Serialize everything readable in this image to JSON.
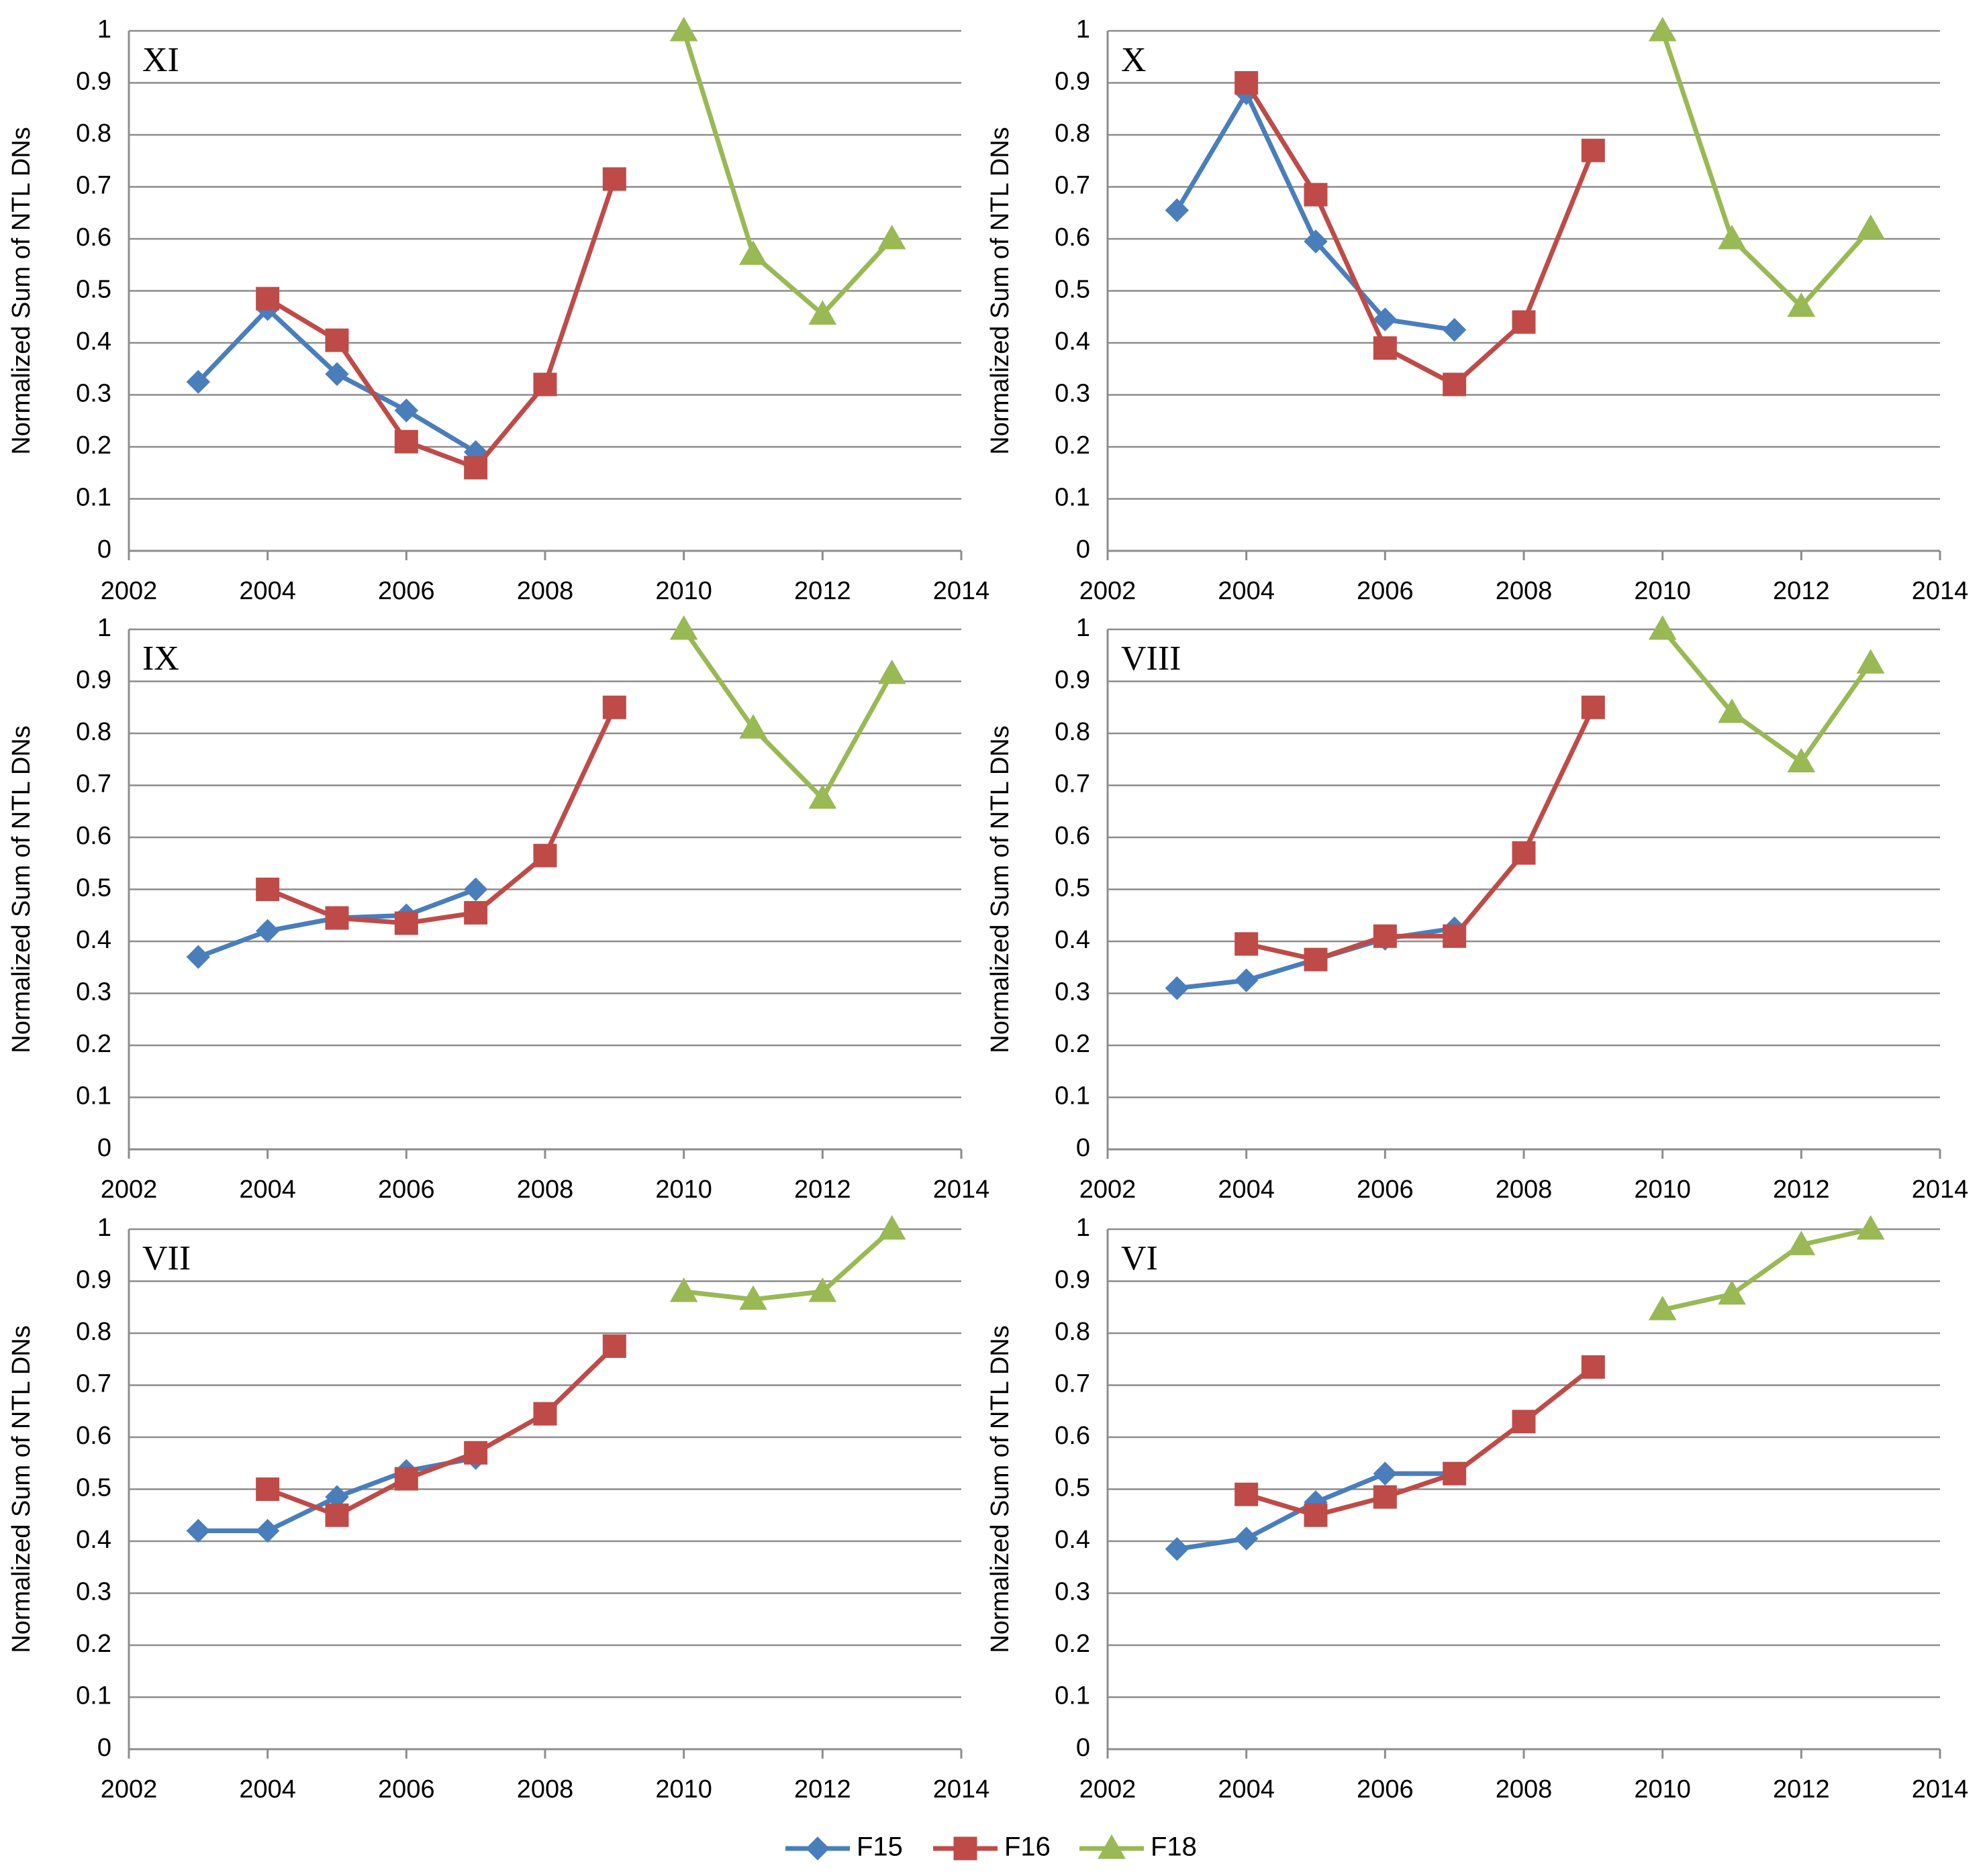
{
  "figure": {
    "colors": {
      "F15": "#4a7ebb",
      "F16": "#be4b48",
      "F18": "#98b954",
      "grid": "#8c8c8c",
      "axis": "#8c8c8c"
    },
    "legend": [
      {
        "name": "F15",
        "marker": "diamond"
      },
      {
        "name": "F16",
        "marker": "square"
      },
      {
        "name": "F18",
        "marker": "triangle"
      }
    ]
  },
  "chart_data": [
    {
      "type": "line",
      "panel": "XI",
      "ylabel": "Normalized Sum of NTL DNs",
      "xlim": [
        2002,
        2014
      ],
      "ylim": [
        0,
        1
      ],
      "xticks": [
        2002,
        2004,
        2006,
        2008,
        2010,
        2012,
        2014
      ],
      "yticks": [
        "0",
        "0.1",
        "0.2",
        "0.3",
        "0.4",
        "0.5",
        "0.6",
        "0.7",
        "0.8",
        "0.9",
        "1"
      ],
      "series": [
        {
          "name": "F15",
          "x": [
            2003,
            2004,
            2005,
            2006,
            2007
          ],
          "values": [
            0.325,
            0.465,
            0.34,
            0.27,
            0.19
          ]
        },
        {
          "name": "F16",
          "x": [
            2004,
            2005,
            2006,
            2007,
            2008,
            2009
          ],
          "values": [
            0.485,
            0.405,
            0.21,
            0.16,
            0.32,
            0.715
          ]
        },
        {
          "name": "F18",
          "x": [
            2010,
            2011,
            2012,
            2013
          ],
          "values": [
            1.0,
            0.57,
            0.455,
            0.6
          ]
        }
      ]
    },
    {
      "type": "line",
      "panel": "X",
      "ylabel": "Normalized Sum of NTL DNs",
      "xlim": [
        2002,
        2014
      ],
      "ylim": [
        0,
        1
      ],
      "xticks": [
        2002,
        2004,
        2006,
        2008,
        2010,
        2012,
        2014
      ],
      "yticks": [
        "0",
        "0.1",
        "0.2",
        "0.3",
        "0.4",
        "0.5",
        "0.6",
        "0.7",
        "0.8",
        "0.9",
        "1"
      ],
      "series": [
        {
          "name": "F15",
          "x": [
            2003,
            2004,
            2005,
            2006,
            2007
          ],
          "values": [
            0.655,
            0.88,
            0.595,
            0.445,
            0.425
          ]
        },
        {
          "name": "F16",
          "x": [
            2004,
            2005,
            2006,
            2007,
            2008,
            2009
          ],
          "values": [
            0.9,
            0.685,
            0.39,
            0.32,
            0.44,
            0.77
          ]
        },
        {
          "name": "F18",
          "x": [
            2010,
            2011,
            2012,
            2013
          ],
          "values": [
            1.0,
            0.6,
            0.47,
            0.62
          ]
        }
      ]
    },
    {
      "type": "line",
      "panel": "IX",
      "ylabel": "Normalized Sum of NTL DNs",
      "xlim": [
        2002,
        2014
      ],
      "ylim": [
        0,
        1
      ],
      "xticks": [
        2002,
        2004,
        2006,
        2008,
        2010,
        2012,
        2014
      ],
      "yticks": [
        "0",
        "0.1",
        "0.2",
        "0.3",
        "0.4",
        "0.5",
        "0.6",
        "0.7",
        "0.8",
        "0.9",
        "1"
      ],
      "series": [
        {
          "name": "F15",
          "x": [
            2003,
            2004,
            2005,
            2006,
            2007
          ],
          "values": [
            0.37,
            0.42,
            0.445,
            0.45,
            0.5
          ]
        },
        {
          "name": "F16",
          "x": [
            2004,
            2005,
            2006,
            2007,
            2008,
            2009
          ],
          "values": [
            0.5,
            0.445,
            0.435,
            0.455,
            0.565,
            0.85
          ]
        },
        {
          "name": "F18",
          "x": [
            2010,
            2011,
            2012,
            2013
          ],
          "values": [
            1.0,
            0.81,
            0.675,
            0.915
          ]
        }
      ]
    },
    {
      "type": "line",
      "panel": "VIII",
      "ylabel": "Normalized Sum of NTL DNs",
      "xlim": [
        2002,
        2014
      ],
      "ylim": [
        0,
        1
      ],
      "xticks": [
        2002,
        2004,
        2006,
        2008,
        2010,
        2012,
        2014
      ],
      "yticks": [
        "0",
        "0.1",
        "0.2",
        "0.3",
        "0.4",
        "0.5",
        "0.6",
        "0.7",
        "0.8",
        "0.9",
        "1"
      ],
      "series": [
        {
          "name": "F15",
          "x": [
            2003,
            2004,
            2005,
            2006,
            2007
          ],
          "values": [
            0.31,
            0.325,
            0.365,
            0.405,
            0.425
          ]
        },
        {
          "name": "F16",
          "x": [
            2004,
            2005,
            2006,
            2007,
            2008,
            2009
          ],
          "values": [
            0.395,
            0.365,
            0.41,
            0.41,
            0.57,
            0.85
          ]
        },
        {
          "name": "F18",
          "x": [
            2010,
            2011,
            2012,
            2013
          ],
          "values": [
            1.0,
            0.84,
            0.745,
            0.935
          ]
        }
      ]
    },
    {
      "type": "line",
      "panel": "VII",
      "ylabel": "Normalized Sum of NTL DNs",
      "xlim": [
        2002,
        2014
      ],
      "ylim": [
        0,
        1
      ],
      "xticks": [
        2002,
        2004,
        2006,
        2008,
        2010,
        2012,
        2014
      ],
      "yticks": [
        "0",
        "0.1",
        "0.2",
        "0.3",
        "0.4",
        "0.5",
        "0.6",
        "0.7",
        "0.8",
        "0.9",
        "1"
      ],
      "series": [
        {
          "name": "F15",
          "x": [
            2003,
            2004,
            2005,
            2006,
            2007
          ],
          "values": [
            0.42,
            0.42,
            0.485,
            0.535,
            0.56
          ]
        },
        {
          "name": "F16",
          "x": [
            2004,
            2005,
            2006,
            2007,
            2008,
            2009
          ],
          "values": [
            0.5,
            0.45,
            0.52,
            0.57,
            0.645,
            0.775
          ]
        },
        {
          "name": "F18",
          "x": [
            2010,
            2011,
            2012,
            2013
          ],
          "values": [
            0.88,
            0.865,
            0.88,
            1.0
          ]
        }
      ]
    },
    {
      "type": "line",
      "panel": "VI",
      "ylabel": "Normalized Sum of NTL DNs",
      "xlim": [
        2002,
        2014
      ],
      "ylim": [
        0,
        1
      ],
      "xticks": [
        2002,
        2004,
        2006,
        2008,
        2010,
        2012,
        2014
      ],
      "yticks": [
        "0",
        "0.1",
        "0.2",
        "0.3",
        "0.4",
        "0.5",
        "0.6",
        "0.7",
        "0.8",
        "0.9",
        "1"
      ],
      "series": [
        {
          "name": "F15",
          "x": [
            2003,
            2004,
            2005,
            2006,
            2007
          ],
          "values": [
            0.385,
            0.405,
            0.475,
            0.53,
            0.53
          ]
        },
        {
          "name": "F16",
          "x": [
            2004,
            2005,
            2006,
            2007,
            2008,
            2009
          ],
          "values": [
            0.49,
            0.45,
            0.485,
            0.53,
            0.63,
            0.735
          ]
        },
        {
          "name": "F18",
          "x": [
            2010,
            2011,
            2012,
            2013
          ],
          "values": [
            0.845,
            0.875,
            0.97,
            1.0
          ]
        }
      ]
    }
  ]
}
